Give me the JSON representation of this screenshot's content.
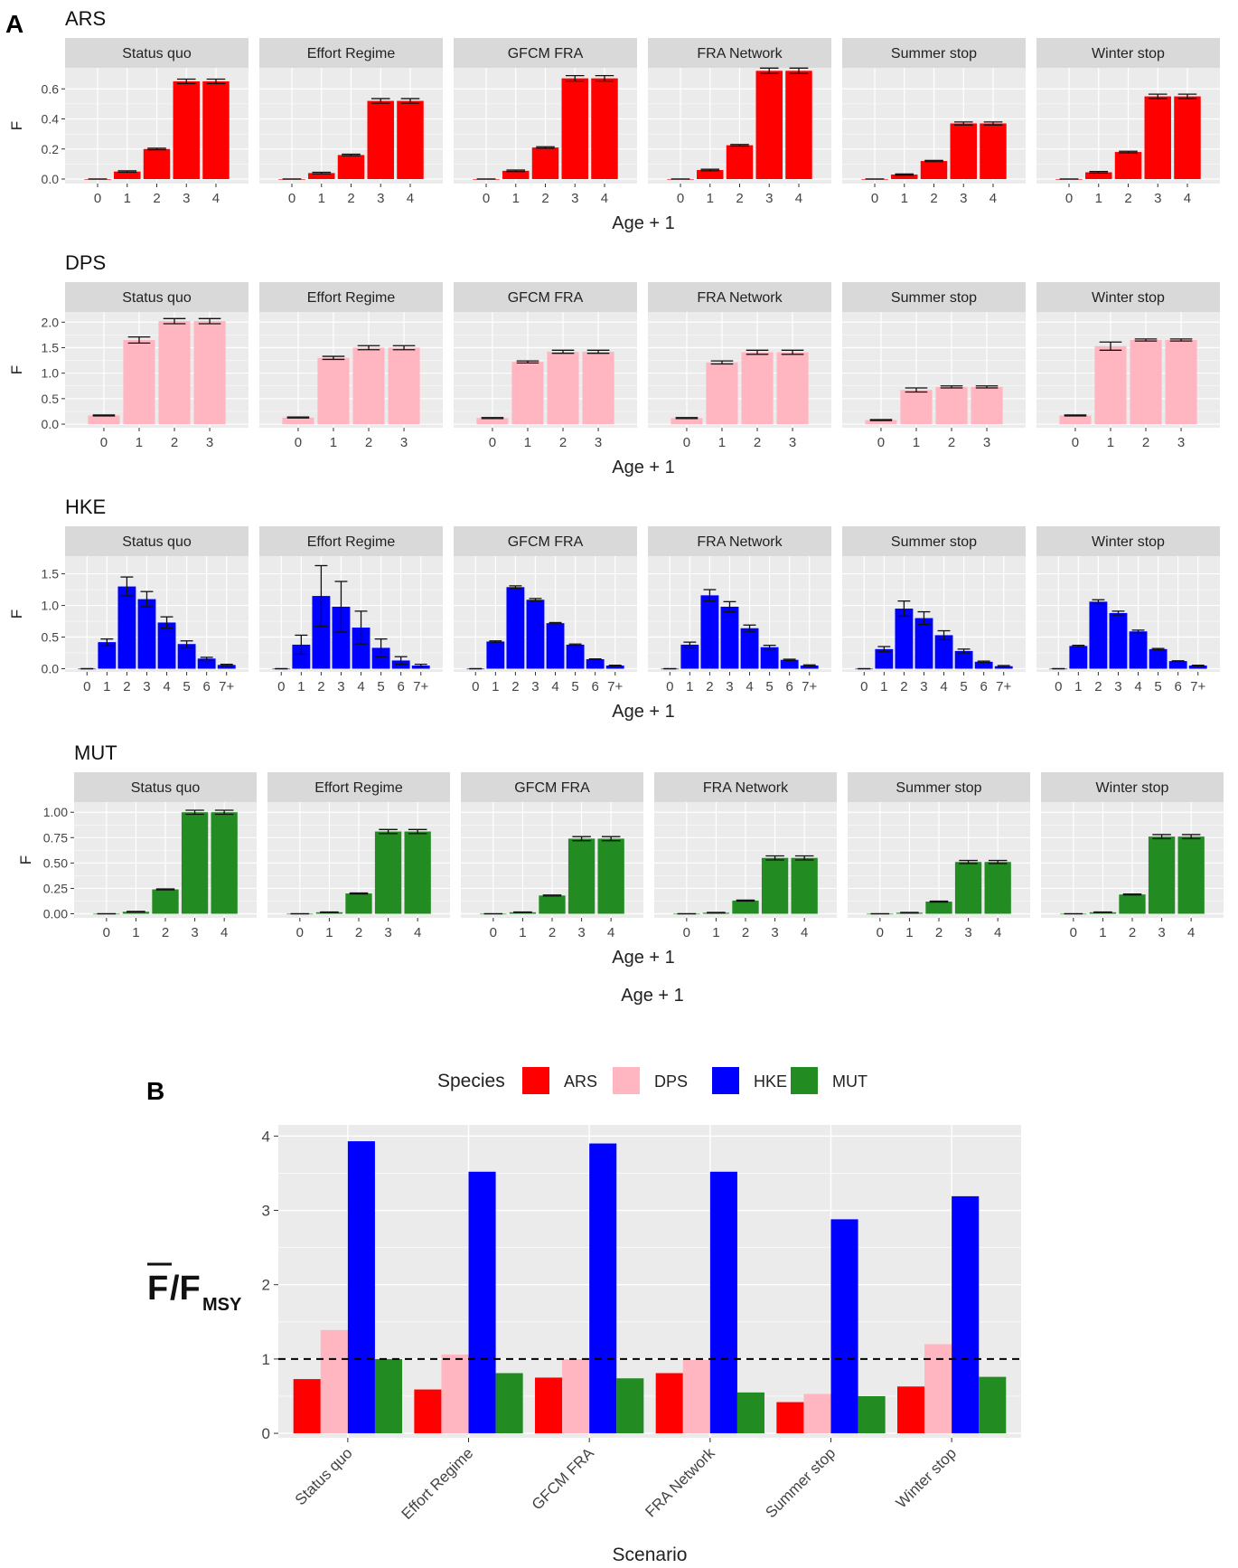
{
  "panel_a_label": "A",
  "panel_b_label": "B",
  "scenarios": [
    "Status quo",
    "Effort Regime",
    "GFCM FRA",
    "FRA Network",
    "Summer stop",
    "Winter stop"
  ],
  "panel_a_common_xlabel": "Age + 1",
  "colors": {
    "ARS": "#ff0000",
    "DPS": "#ffb6c1",
    "HKE": "#0000ff",
    "MUT": "#228b22",
    "panel_bg": "#ebebeb",
    "strip_bg": "#d9d9d9",
    "grid": "#ffffff"
  },
  "chart_data": [
    {
      "type": "bar",
      "species": "ARS",
      "title": "ARS",
      "xlabel": "Age + 1",
      "ylabel": "F",
      "ylim": [
        -0.03,
        0.74
      ],
      "yticks": [
        0.0,
        0.2,
        0.4,
        0.6
      ],
      "ytick_labels": [
        "0.0",
        "0.2",
        "0.4",
        "0.6"
      ],
      "categories": [
        "0",
        "1",
        "2",
        "3",
        "4"
      ],
      "facets": [
        {
          "scenario": "Status quo",
          "values": [
            0.0,
            0.05,
            0.2,
            0.65,
            0.65
          ],
          "errors": [
            0,
            0.005,
            0.005,
            0.015,
            0.015
          ]
        },
        {
          "scenario": "Effort Regime",
          "values": [
            0.0,
            0.04,
            0.16,
            0.52,
            0.52
          ],
          "errors": [
            0,
            0.005,
            0.005,
            0.015,
            0.015
          ]
        },
        {
          "scenario": "GFCM FRA",
          "values": [
            0.0,
            0.055,
            0.21,
            0.67,
            0.67
          ],
          "errors": [
            0,
            0.005,
            0.005,
            0.018,
            0.018
          ]
        },
        {
          "scenario": "FRA Network",
          "values": [
            0.0,
            0.06,
            0.225,
            0.72,
            0.72
          ],
          "errors": [
            0,
            0.005,
            0.005,
            0.018,
            0.018
          ]
        },
        {
          "scenario": "Summer stop",
          "values": [
            0.0,
            0.03,
            0.12,
            0.37,
            0.37
          ],
          "errors": [
            0,
            0.004,
            0.004,
            0.01,
            0.01
          ]
        },
        {
          "scenario": "Winter stop",
          "values": [
            0.0,
            0.045,
            0.18,
            0.55,
            0.55
          ],
          "errors": [
            0,
            0.005,
            0.005,
            0.015,
            0.015
          ]
        }
      ]
    },
    {
      "type": "bar",
      "species": "DPS",
      "title": "DPS",
      "xlabel": "Age + 1",
      "ylabel": "F",
      "ylim": [
        -0.07,
        2.2
      ],
      "yticks": [
        0.0,
        0.5,
        1.0,
        1.5,
        2.0
      ],
      "ytick_labels": [
        "0.0",
        "0.5",
        "1.0",
        "1.5",
        "2.0"
      ],
      "categories": [
        "0",
        "1",
        "2",
        "3"
      ],
      "facets": [
        {
          "scenario": "Status quo",
          "values": [
            0.17,
            1.65,
            2.02,
            2.02
          ],
          "errors": [
            0.01,
            0.06,
            0.05,
            0.05
          ]
        },
        {
          "scenario": "Effort Regime",
          "values": [
            0.13,
            1.3,
            1.5,
            1.5
          ],
          "errors": [
            0.01,
            0.03,
            0.04,
            0.04
          ]
        },
        {
          "scenario": "GFCM FRA",
          "values": [
            0.12,
            1.22,
            1.42,
            1.42
          ],
          "errors": [
            0.01,
            0.02,
            0.03,
            0.03
          ]
        },
        {
          "scenario": "FRA Network",
          "values": [
            0.12,
            1.21,
            1.41,
            1.41
          ],
          "errors": [
            0.01,
            0.03,
            0.04,
            0.04
          ]
        },
        {
          "scenario": "Summer stop",
          "values": [
            0.08,
            0.67,
            0.73,
            0.73
          ],
          "errors": [
            0.01,
            0.04,
            0.02,
            0.02
          ]
        },
        {
          "scenario": "Winter stop",
          "values": [
            0.17,
            1.53,
            1.65,
            1.65
          ],
          "errors": [
            0.01,
            0.08,
            0.02,
            0.02
          ]
        }
      ]
    },
    {
      "type": "bar",
      "species": "HKE",
      "title": "HKE",
      "xlabel": "Age + 1",
      "ylabel": "F",
      "ylim": [
        -0.05,
        1.78
      ],
      "yticks": [
        0.0,
        0.5,
        1.0,
        1.5
      ],
      "ytick_labels": [
        "0.0",
        "0.5",
        "1.0",
        "1.5"
      ],
      "categories": [
        "0",
        "1",
        "2",
        "3",
        "4",
        "5",
        "6",
        "7+"
      ],
      "facets": [
        {
          "scenario": "Status quo",
          "values": [
            0.0,
            0.42,
            1.3,
            1.1,
            0.73,
            0.39,
            0.16,
            0.06
          ],
          "errors": [
            0,
            0.05,
            0.15,
            0.12,
            0.09,
            0.05,
            0.02,
            0.01
          ]
        },
        {
          "scenario": "Effort Regime",
          "values": [
            0.0,
            0.38,
            1.15,
            0.98,
            0.65,
            0.33,
            0.13,
            0.05
          ],
          "errors": [
            0,
            0.15,
            0.48,
            0.4,
            0.26,
            0.14,
            0.06,
            0.02
          ]
        },
        {
          "scenario": "GFCM FRA",
          "values": [
            0.0,
            0.43,
            1.29,
            1.09,
            0.72,
            0.38,
            0.15,
            0.05
          ],
          "errors": [
            0,
            0.01,
            0.02,
            0.02,
            0.01,
            0.01,
            0.005,
            0.005
          ]
        },
        {
          "scenario": "FRA Network",
          "values": [
            0.0,
            0.38,
            1.16,
            0.98,
            0.64,
            0.34,
            0.14,
            0.05
          ],
          "errors": [
            0,
            0.04,
            0.09,
            0.08,
            0.05,
            0.03,
            0.01,
            0.01
          ]
        },
        {
          "scenario": "Summer stop",
          "values": [
            0.0,
            0.31,
            0.95,
            0.8,
            0.53,
            0.28,
            0.11,
            0.04
          ],
          "errors": [
            0,
            0.04,
            0.12,
            0.1,
            0.07,
            0.03,
            0.01,
            0.01
          ]
        },
        {
          "scenario": "Winter stop",
          "values": [
            0.0,
            0.36,
            1.06,
            0.88,
            0.59,
            0.31,
            0.12,
            0.05
          ],
          "errors": [
            0,
            0.01,
            0.03,
            0.03,
            0.02,
            0.01,
            0.005,
            0.005
          ]
        }
      ]
    },
    {
      "type": "bar",
      "species": "MUT",
      "title": "MUT",
      "xlabel": "Age + 1",
      "ylabel": "F",
      "ylim": [
        -0.04,
        1.1
      ],
      "yticks": [
        0.0,
        0.25,
        0.5,
        0.75,
        1.0
      ],
      "ytick_labels": [
        "0.00",
        "0.25",
        "0.50",
        "0.75",
        "1.00"
      ],
      "categories": [
        "0",
        "1",
        "2",
        "3",
        "4"
      ],
      "facets": [
        {
          "scenario": "Status quo",
          "values": [
            0.0,
            0.02,
            0.24,
            1.0,
            1.0
          ],
          "errors": [
            0,
            0.003,
            0.005,
            0.02,
            0.02
          ]
        },
        {
          "scenario": "Effort Regime",
          "values": [
            0.0,
            0.015,
            0.2,
            0.81,
            0.81
          ],
          "errors": [
            0,
            0.003,
            0.005,
            0.02,
            0.02
          ]
        },
        {
          "scenario": "GFCM FRA",
          "values": [
            0.0,
            0.015,
            0.18,
            0.74,
            0.74
          ],
          "errors": [
            0,
            0.003,
            0.005,
            0.02,
            0.02
          ]
        },
        {
          "scenario": "FRA Network",
          "values": [
            0.0,
            0.01,
            0.13,
            0.55,
            0.55
          ],
          "errors": [
            0,
            0.003,
            0.005,
            0.02,
            0.02
          ]
        },
        {
          "scenario": "Summer stop",
          "values": [
            0.0,
            0.01,
            0.12,
            0.51,
            0.51
          ],
          "errors": [
            0,
            0.003,
            0.005,
            0.015,
            0.015
          ]
        },
        {
          "scenario": "Winter stop",
          "values": [
            0.0,
            0.015,
            0.19,
            0.76,
            0.76
          ],
          "errors": [
            0,
            0.003,
            0.005,
            0.02,
            0.02
          ]
        }
      ]
    },
    {
      "type": "bar",
      "panel": "B",
      "xlabel": "Scenario",
      "ylabel_main": "F",
      "ylabel_sep": "/F",
      "ylabel_sub": "MSY",
      "legend_title": "Species",
      "legend_position": "top",
      "ylim": [
        -0.06,
        4.15
      ],
      "yticks": [
        0,
        1,
        2,
        3,
        4
      ],
      "ytick_labels": [
        "0",
        "1",
        "2",
        "3",
        "4"
      ],
      "reference_line": 1,
      "categories": [
        "Status quo",
        "Effort Regime",
        "GFCM FRA",
        "FRA Network",
        "Summer stop",
        "Winter stop"
      ],
      "series": [
        {
          "name": "ARS",
          "values": [
            0.73,
            0.59,
            0.75,
            0.81,
            0.42,
            0.63
          ]
        },
        {
          "name": "DPS",
          "values": [
            1.39,
            1.06,
            1.0,
            0.99,
            0.53,
            1.2
          ]
        },
        {
          "name": "HKE",
          "values": [
            3.93,
            3.52,
            3.9,
            3.52,
            2.88,
            3.19
          ]
        },
        {
          "name": "MUT",
          "values": [
            1.0,
            0.81,
            0.74,
            0.55,
            0.5,
            0.76
          ]
        }
      ]
    }
  ]
}
